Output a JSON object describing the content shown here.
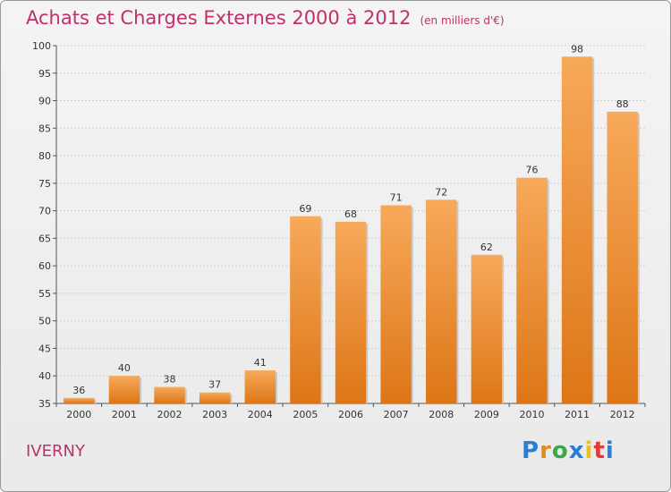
{
  "header": {
    "title": "Achats et Charges Externes 2000 à 2012",
    "subtitle": "(en milliers d'€)"
  },
  "footer": {
    "commune": "IVERNY",
    "logo": "Proxiti"
  },
  "colors": {
    "bar_top": "#f7a95a",
    "bar_bottom": "#dd7617",
    "title": "#c0306a",
    "grid": "#cfcfcf"
  },
  "chart_data": {
    "type": "bar",
    "title": "Achats et Charges Externes 2000 à 2012",
    "subtitle": "(en milliers d'€)",
    "xlabel": "",
    "ylabel": "",
    "ylim": [
      35,
      100
    ],
    "ytick_step": 5,
    "grid": true,
    "categories": [
      "2000",
      "2001",
      "2002",
      "2003",
      "2004",
      "2005",
      "2006",
      "2007",
      "2008",
      "2009",
      "2010",
      "2011",
      "2012"
    ],
    "values": [
      36,
      40,
      38,
      37,
      41,
      69,
      68,
      71,
      72,
      62,
      76,
      98,
      88
    ]
  }
}
